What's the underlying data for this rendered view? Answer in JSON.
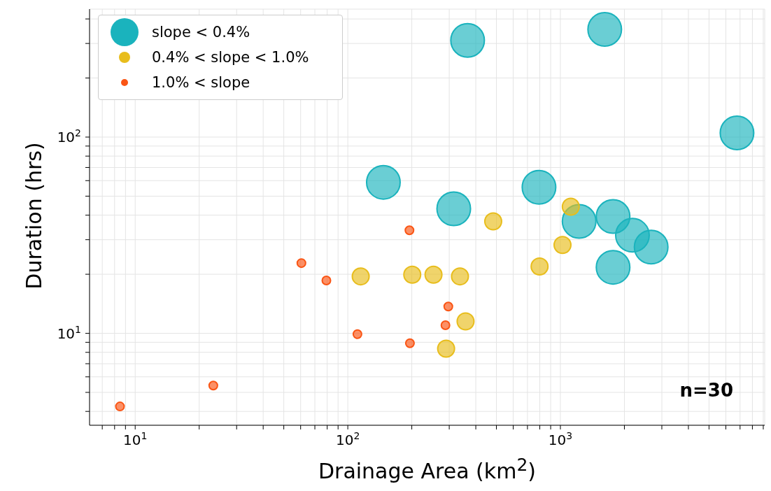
{
  "chart_data": {
    "type": "scatter",
    "xlabel": "Drainage Area (km$^{2}$)",
    "ylabel": "Duration (hrs)",
    "log": "xy",
    "grid": true,
    "legend": "top left",
    "marker": "circle",
    "xlim": [
      6.1,
      9140
    ],
    "ylim": [
      3.4,
      449
    ],
    "xticks": [
      {
        "value": 7,
        "label": null
      },
      {
        "value": 8,
        "label": null
      },
      {
        "value": 9,
        "label": null
      },
      {
        "value": 10,
        "label": "10$^{1}$"
      },
      {
        "value": 20,
        "label": null
      },
      {
        "value": 30,
        "label": null
      },
      {
        "value": 40,
        "label": null
      },
      {
        "value": 50,
        "label": null
      },
      {
        "value": 60,
        "label": null
      },
      {
        "value": 70,
        "label": null
      },
      {
        "value": 80,
        "label": null
      },
      {
        "value": 90,
        "label": null
      },
      {
        "value": 100,
        "label": "10$^{2}$"
      },
      {
        "value": 200,
        "label": null
      },
      {
        "value": 300,
        "label": null
      },
      {
        "value": 400,
        "label": null
      },
      {
        "value": 500,
        "label": null
      },
      {
        "value": 600,
        "label": null
      },
      {
        "value": 700,
        "label": null
      },
      {
        "value": 800,
        "label": null
      },
      {
        "value": 900,
        "label": null
      },
      {
        "value": 1000,
        "label": "10$^{3}$"
      },
      {
        "value": 2000,
        "label": null
      },
      {
        "value": 3000,
        "label": null
      },
      {
        "value": 4000,
        "label": null
      },
      {
        "value": 5000,
        "label": null
      },
      {
        "value": 6000,
        "label": null
      },
      {
        "value": 7000,
        "label": null
      },
      {
        "value": 8000,
        "label": null
      },
      {
        "value": 9000,
        "label": null
      }
    ],
    "yticks": [
      {
        "value": 4,
        "label": null
      },
      {
        "value": 5,
        "label": null
      },
      {
        "value": 6,
        "label": null
      },
      {
        "value": 7,
        "label": null
      },
      {
        "value": 8,
        "label": null
      },
      {
        "value": 9,
        "label": null
      },
      {
        "value": 10,
        "label": "10$^{1}$"
      },
      {
        "value": 20,
        "label": null
      },
      {
        "value": 30,
        "label": null
      },
      {
        "value": 40,
        "label": null
      },
      {
        "value": 50,
        "label": null
      },
      {
        "value": 60,
        "label": null
      },
      {
        "value": 70,
        "label": null
      },
      {
        "value": 80,
        "label": null
      },
      {
        "value": 90,
        "label": null
      },
      {
        "value": 100,
        "label": "10$^{2}$"
      },
      {
        "value": 200,
        "label": null
      },
      {
        "value": 300,
        "label": null
      },
      {
        "value": 400,
        "label": null
      }
    ],
    "series": [
      {
        "name": "slope < 0.4%",
        "color": "#1ab3bd",
        "x": [
          366,
          1616,
          6770,
          147,
          315,
          793,
          1225,
          1769,
          2182,
          2672,
          1769
        ],
        "values": [
          311,
          354,
          105,
          58.8,
          43.1,
          55.5,
          37.2,
          39.4,
          31.6,
          27.5,
          21.7
        ]
      },
      {
        "name": "0.4% < slope < 1.0%",
        "color": "#e8bd1c",
        "x": [
          1119,
          483,
          1023,
          798,
          115,
          201,
          253,
          337,
          358,
          290
        ],
        "values": [
          44.2,
          37.2,
          28.2,
          21.9,
          19.5,
          19.9,
          19.9,
          19.5,
          11.5,
          8.35
        ]
      },
      {
        "name": "1.0% < slope",
        "color": "#fa5514",
        "x": [
          195,
          60.5,
          79.3,
          297,
          288,
          111,
          196,
          23.3,
          8.48
        ],
        "values": [
          33.5,
          22.8,
          18.6,
          13.7,
          11.0,
          9.9,
          8.9,
          5.42,
          4.24
        ]
      }
    ],
    "annotations": [
      "n=30"
    ]
  }
}
